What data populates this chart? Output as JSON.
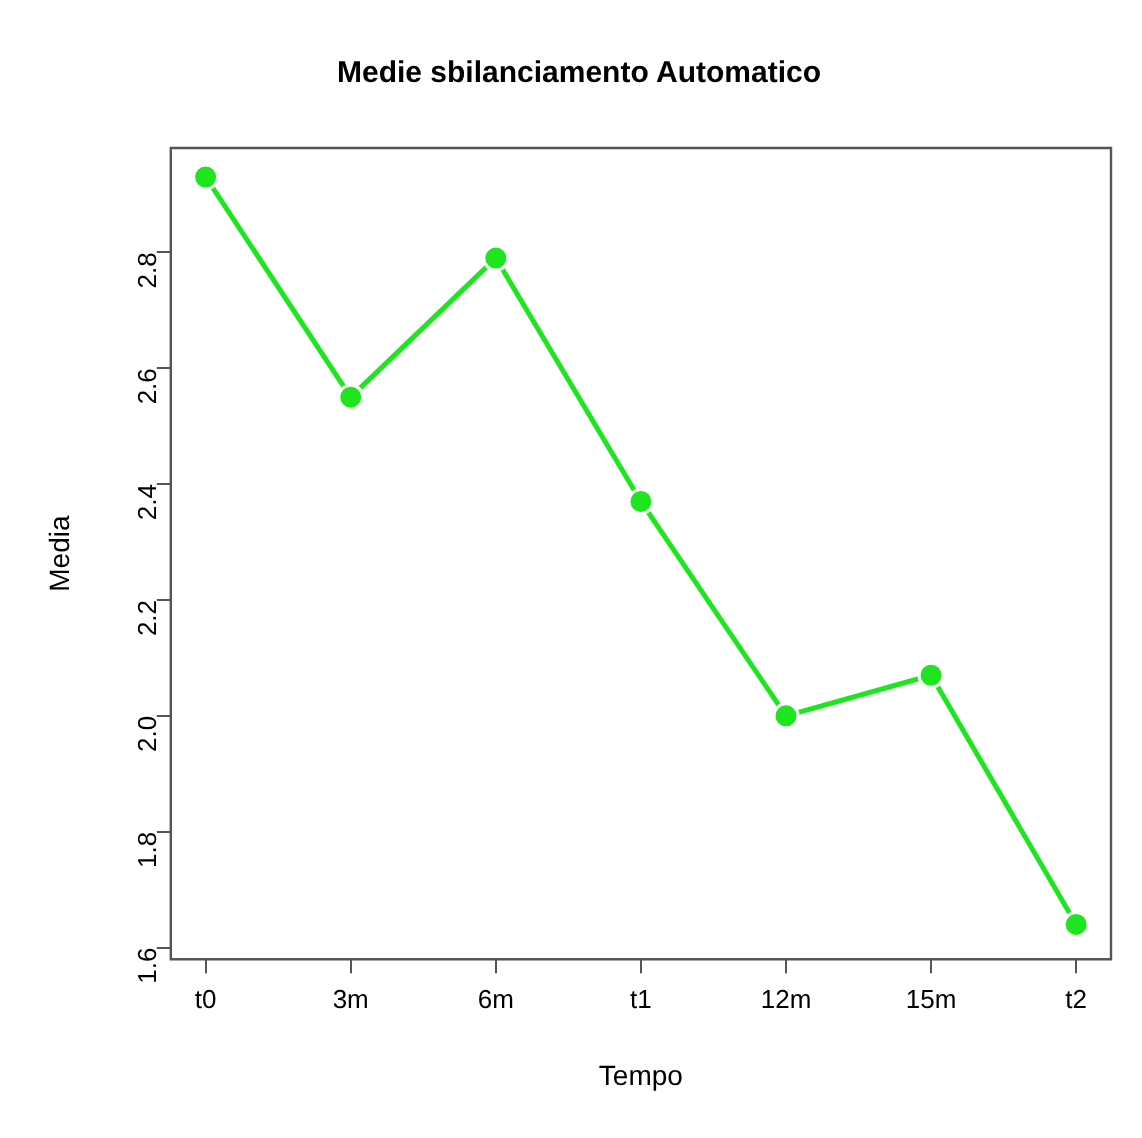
{
  "chart_data": {
    "type": "line",
    "title": "Medie sbilanciamento Automatico",
    "xlabel": "Tempo",
    "ylabel": "Media",
    "categories": [
      "t0",
      "3m",
      "6m",
      "t1",
      "12m",
      "15m",
      "t2"
    ],
    "series": [
      {
        "color": "#1ee61e",
        "values": [
          2.93,
          2.55,
          2.79,
          2.37,
          2.0,
          2.07,
          1.64
        ]
      }
    ],
    "ylim": [
      1.58,
      2.98
    ],
    "yticks": [
      {
        "value": 1.6,
        "label": "1.6"
      },
      {
        "value": 1.8,
        "label": "1.8"
      },
      {
        "value": 2.0,
        "label": "2.0"
      },
      {
        "value": 2.2,
        "label": "2.2"
      },
      {
        "value": 2.4,
        "label": "2.4"
      },
      {
        "value": 2.6,
        "label": "2.6"
      },
      {
        "value": 2.8,
        "label": "2.8"
      }
    ],
    "grid": false,
    "legend": false,
    "marker": "circle",
    "line_style": "solid"
  }
}
